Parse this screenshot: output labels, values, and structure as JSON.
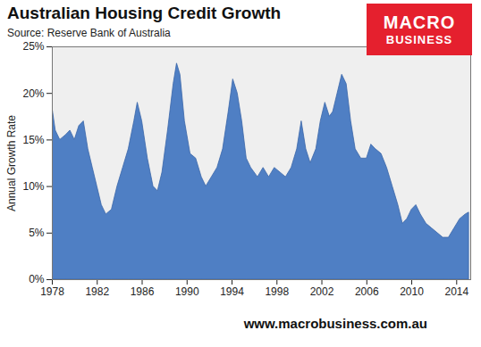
{
  "chart_data": {
    "type": "area",
    "title": "Australian Housing Credit Growth",
    "subtitle": "Source: Reserve Bank of Australia",
    "ylabel": "Annual Growth Rate",
    "annotations": {
      "logo": [
        "MACRO",
        "BUSINESS"
      ],
      "footer": "www.macrobusiness.com.au"
    },
    "color": "#4f7fc4",
    "grid": false,
    "xlim": [
      1978,
      2015.25
    ],
    "xticks": [
      1978,
      1982,
      1986,
      1990,
      1994,
      1998,
      2002,
      2006,
      2010,
      2014
    ],
    "ylim": [
      0,
      25
    ],
    "yticks": [
      {
        "value": 0,
        "label": "0%"
      },
      {
        "value": 5,
        "label": "5%"
      },
      {
        "value": 10,
        "label": "10%"
      },
      {
        "value": 15,
        "label": "15%"
      },
      {
        "value": 20,
        "label": "20%"
      },
      {
        "value": 25,
        "label": "25%"
      }
    ],
    "x": [
      1978.0,
      1978.3,
      1978.7,
      1979.2,
      1979.6,
      1980.0,
      1980.4,
      1980.8,
      1981.2,
      1981.6,
      1982.0,
      1982.4,
      1982.8,
      1983.3,
      1983.8,
      1984.3,
      1984.8,
      1985.3,
      1985.6,
      1986.0,
      1986.5,
      1987.0,
      1987.4,
      1987.8,
      1988.3,
      1988.8,
      1989.1,
      1989.4,
      1989.8,
      1990.3,
      1990.8,
      1991.3,
      1991.7,
      1992.2,
      1992.7,
      1993.2,
      1993.7,
      1994.1,
      1994.5,
      1994.9,
      1995.3,
      1995.7,
      1996.3,
      1996.8,
      1997.3,
      1997.8,
      1998.3,
      1998.8,
      1999.3,
      1999.8,
      2000.2,
      2000.6,
      2001.0,
      2001.5,
      2001.9,
      2002.3,
      2002.7,
      2003.0,
      2003.4,
      2003.8,
      2004.2,
      2004.6,
      2005.0,
      2005.5,
      2006.0,
      2006.4,
      2006.8,
      2007.3,
      2007.8,
      2008.3,
      2008.8,
      2009.2,
      2009.6,
      2010.0,
      2010.4,
      2010.8,
      2011.3,
      2011.8,
      2012.3,
      2012.8,
      2013.3,
      2013.8,
      2014.3,
      2014.8,
      2015.1
    ],
    "values": [
      18.5,
      16,
      15,
      15.5,
      16,
      15,
      16.5,
      17,
      14,
      12,
      10,
      8,
      7,
      7.5,
      10,
      12,
      14,
      17,
      19,
      17,
      13,
      10,
      9.5,
      11.5,
      16,
      21,
      23.2,
      22,
      17,
      13.5,
      13,
      11,
      10,
      11,
      12,
      14,
      18,
      21.5,
      20,
      17,
      13,
      12,
      11,
      12,
      11,
      12,
      11.5,
      11,
      12,
      14,
      17,
      14,
      12.5,
      14,
      17,
      19,
      17.5,
      18,
      20,
      22,
      21,
      17,
      14,
      13,
      13,
      14.5,
      14,
      13.5,
      12,
      10,
      8,
      6,
      6.5,
      7.5,
      8,
      7,
      6,
      5.5,
      5,
      4.5,
      4.5,
      5.5,
      6.5,
      7,
      7.2
    ]
  }
}
